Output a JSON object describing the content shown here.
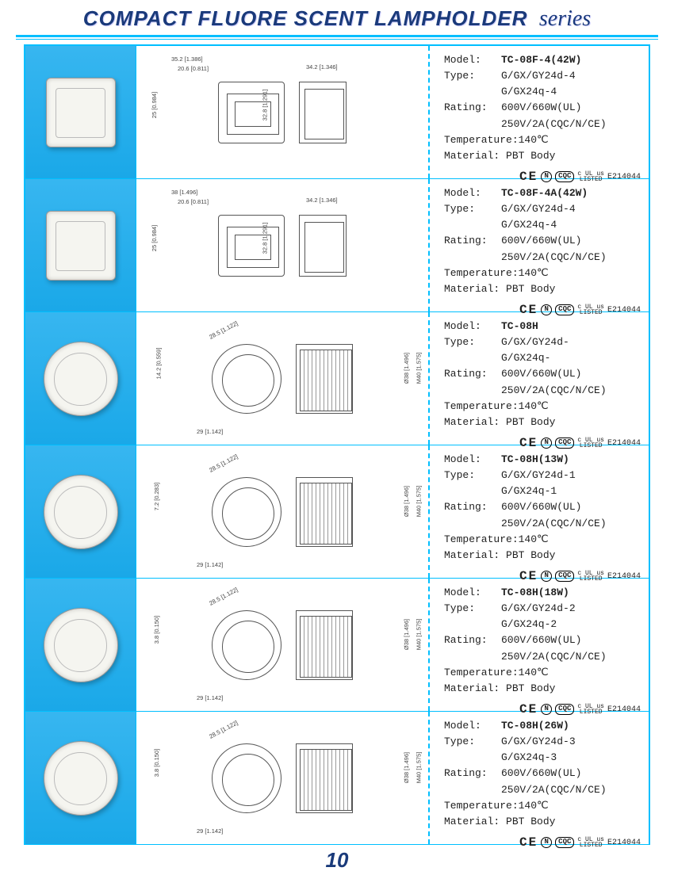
{
  "header": {
    "title_main": "COMPACT FLUORE SCENT LAMPHOLDER",
    "title_series": "series"
  },
  "page_number": "10",
  "cert": {
    "ce": "CE",
    "n": "N",
    "cqc": "CQC",
    "ul_top": "c UL us",
    "ul_bottom": "LISTED",
    "enumber": "E214044"
  },
  "common": {
    "labels": {
      "model": "Model:",
      "type": "Type:",
      "rating": "Rating:",
      "temperature": "Temperature:",
      "material": "Material:"
    }
  },
  "diagram_dims": {
    "rect": {
      "w1": "35.2 [1.386]",
      "w2": "20.6 [0.811]",
      "w3": "38 [1.496]",
      "h1": "25 [0.984]",
      "h2": "32.8 [1.291]",
      "side_w": "34.2 [1.346]"
    },
    "round": {
      "d1": "28.5 [1.122]",
      "w": "29 [1.142]",
      "h": "14.2 [0.559]",
      "h2": "7.2 [0.283]",
      "h3": "3.8 [0.150]",
      "h4": "2.8 [0.110]",
      "dia1": "Ø38 [1.496]",
      "dia2": "M40 [1.575]"
    }
  },
  "rows": [
    {
      "shape": "square",
      "diag": "rect",
      "model": "TC-08F-4(42W)",
      "type1": "G/GX/GY24d-4",
      "type2": "G/GX24q-4",
      "rating1": "600V/660W(UL)",
      "rating2": "250V/2A(CQC/N/CE)",
      "temperature": "140℃",
      "material": "PBT Body"
    },
    {
      "shape": "square",
      "diag": "rect_wide",
      "model": "TC-08F-4A(42W)",
      "type1": "G/GX/GY24d-4",
      "type2": "G/GX24q-4",
      "rating1": "600V/660W(UL)",
      "rating2": "250V/2A(CQC/N/CE)",
      "temperature": "140℃",
      "material": "PBT Body"
    },
    {
      "shape": "round",
      "diag": "round",
      "model": "TC-08H",
      "type1": "G/GX/GY24d-",
      "type2": "G/GX24q-",
      "rating1": "600V/660W(UL)",
      "rating2": "250V/2A(CQC/N/CE)",
      "temperature": "140℃",
      "material": "PBT Body"
    },
    {
      "shape": "round",
      "diag": "round",
      "model": "TC-08H(13W)",
      "type1": "G/GX/GY24d-1",
      "type2": "G/GX24q-1",
      "rating1": "600V/660W(UL)",
      "rating2": "250V/2A(CQC/N/CE)",
      "temperature": "140℃",
      "material": "PBT Body"
    },
    {
      "shape": "round",
      "diag": "round",
      "model": "TC-08H(18W)",
      "type1": "G/GX/GY24d-2",
      "type2": "G/GX24q-2",
      "rating1": "600V/660W(UL)",
      "rating2": "250V/2A(CQC/N/CE)",
      "temperature": "140℃",
      "material": "PBT Body"
    },
    {
      "shape": "round",
      "diag": "round",
      "model": "TC-08H(26W)",
      "type1": "G/GX/GY24d-3",
      "type2": "G/GX24q-3",
      "rating1": "600V/660W(UL)",
      "rating2": "250V/2A(CQC/N/CE)",
      "temperature": "140℃",
      "material": "PBT Body"
    }
  ]
}
